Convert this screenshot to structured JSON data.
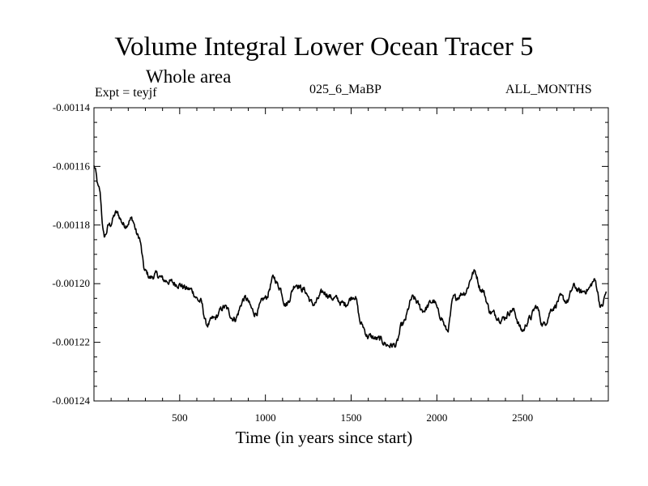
{
  "chart_data": {
    "type": "line",
    "title": "Volume Integral Lower Ocean Tracer 5",
    "subtitle": "Whole area",
    "expt_label": "Expt = teyjf",
    "run_label": "025_6_MaBP",
    "period_label": "ALL_MONTHS",
    "xlabel": "Time (in years since start)",
    "ylabel": "",
    "xlim": [
      0,
      3000
    ],
    "ylim": [
      -0.00124,
      -0.00114
    ],
    "xticks": [
      500,
      1000,
      1500,
      2000,
      2500
    ],
    "xtick_labels": [
      "500",
      "1000",
      "1500",
      "2000",
      "2500"
    ],
    "yticks": [
      -0.00114,
      -0.00116,
      -0.00118,
      -0.0012,
      -0.00122,
      -0.00124
    ],
    "ytick_labels": [
      "-0.00114",
      "-0.00116",
      "-0.00118",
      "-0.00120",
      "-0.00122",
      "-0.00124"
    ],
    "series": [
      {
        "name": "tracer5",
        "color": "#000000",
        "x": [
          0,
          30,
          60,
          90,
          130,
          180,
          220,
          260,
          300,
          330,
          360,
          420,
          480,
          560,
          620,
          660,
          700,
          760,
          820,
          880,
          940,
          1000,
          1050,
          1080,
          1120,
          1180,
          1220,
          1280,
          1340,
          1400,
          1460,
          1520,
          1560,
          1600,
          1660,
          1720,
          1760,
          1800,
          1860,
          1920,
          1980,
          2020,
          2060,
          2100,
          2160,
          2220,
          2260,
          2320,
          2380,
          2440,
          2500,
          2540,
          2580,
          2620,
          2680,
          2720,
          2760,
          2800,
          2840,
          2880,
          2920,
          2960,
          2990
        ],
        "values": [
          -0.00116,
          -0.001168,
          -0.001184,
          -0.00118,
          -0.001176,
          -0.00118,
          -0.001178,
          -0.001184,
          -0.001196,
          -0.001198,
          -0.001197,
          -0.001199,
          -0.0012,
          -0.001202,
          -0.001206,
          -0.001214,
          -0.001212,
          -0.001208,
          -0.001212,
          -0.001205,
          -0.00121,
          -0.001205,
          -0.001198,
          -0.001201,
          -0.001207,
          -0.0012,
          -0.001202,
          -0.001207,
          -0.001203,
          -0.001205,
          -0.001207,
          -0.001204,
          -0.001214,
          -0.001218,
          -0.001219,
          -0.001221,
          -0.001221,
          -0.001214,
          -0.001205,
          -0.001209,
          -0.001206,
          -0.001211,
          -0.001216,
          -0.001205,
          -0.001203,
          -0.001196,
          -0.001202,
          -0.00121,
          -0.001212,
          -0.001209,
          -0.001216,
          -0.001212,
          -0.001208,
          -0.001214,
          -0.001208,
          -0.001205,
          -0.001206,
          -0.001201,
          -0.001203,
          -0.001202,
          -0.001199,
          -0.001208,
          -0.001203
        ]
      }
    ]
  }
}
